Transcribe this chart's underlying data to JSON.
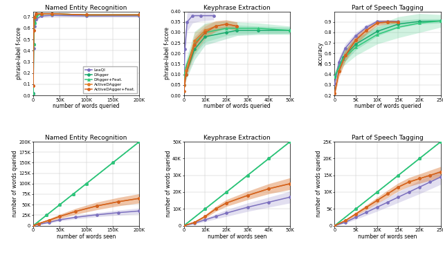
{
  "methods": [
    "LeaQI",
    "DAgger",
    "DAgger+Feat.",
    "ActiveDAgger",
    "ActiveDAgger+Feat."
  ],
  "colors": [
    "#7b6fbe",
    "#1aaa6e",
    "#2ec87a",
    "#e07b2a",
    "#d4621e"
  ],
  "markers": [
    "o",
    "o",
    "^",
    "o",
    "o"
  ],
  "NER_top": {
    "title": "Named Entity Recognition",
    "xlabel": "number of words queried",
    "ylabel": "phrase-label f-score",
    "xlim": [
      0,
      200000
    ],
    "ylim": [
      0.0,
      0.75
    ],
    "xticks": [
      0,
      50000,
      100000,
      150000,
      200000
    ],
    "xtick_labels": [
      "0",
      "50K",
      "100K",
      "150K",
      "200K"
    ],
    "yticks": [
      0.0,
      0.1,
      0.2,
      0.3,
      0.4,
      0.5,
      0.6,
      0.7
    ],
    "data": {
      "LeaQI": {
        "x": [
          0,
          800,
          2000,
          5000,
          15000,
          35000,
          100000,
          200000
        ],
        "y": [
          0.02,
          0.42,
          0.62,
          0.68,
          0.71,
          0.715,
          0.71,
          0.71
        ],
        "std": [
          0.005,
          0.025,
          0.025,
          0.015,
          0.01,
          0.008,
          0.007,
          0.007
        ]
      },
      "DAgger": {
        "x": [
          0,
          800,
          2000,
          5000,
          15000,
          35000,
          100000,
          200000
        ],
        "y": [
          0.02,
          0.46,
          0.65,
          0.71,
          0.73,
          0.73,
          0.72,
          0.72
        ],
        "std": [
          0.005,
          0.02,
          0.02,
          0.012,
          0.008,
          0.006,
          0.005,
          0.005
        ]
      },
      "DAgger+Feat.": {
        "x": [
          0,
          800,
          2000,
          5000,
          15000,
          35000,
          100000,
          200000
        ],
        "y": [
          0.02,
          0.46,
          0.65,
          0.71,
          0.73,
          0.73,
          0.72,
          0.72
        ],
        "std": [
          0.005,
          0.02,
          0.02,
          0.012,
          0.008,
          0.006,
          0.005,
          0.005
        ]
      },
      "ActiveDAgger": {
        "x": [
          0,
          800,
          2000,
          5000,
          15000,
          35000,
          100000,
          200000
        ],
        "y": [
          0.09,
          0.58,
          0.7,
          0.73,
          0.73,
          0.73,
          0.72,
          0.72
        ],
        "std": [
          0.01,
          0.03,
          0.02,
          0.012,
          0.008,
          0.006,
          0.005,
          0.005
        ]
      },
      "ActiveDAgger+Feat.": {
        "x": [
          0,
          800,
          2000,
          5000,
          15000,
          35000,
          100000,
          200000
        ],
        "y": [
          0.09,
          0.58,
          0.7,
          0.73,
          0.73,
          0.73,
          0.72,
          0.72
        ],
        "std": [
          0.01,
          0.03,
          0.02,
          0.012,
          0.008,
          0.006,
          0.005,
          0.005
        ]
      }
    }
  },
  "KP_top": {
    "title": "Keyphrase Extraction",
    "xlabel": "number of words queried",
    "ylabel": "phrase-label f-score",
    "xlim": [
      0,
      50000
    ],
    "ylim": [
      0.0,
      0.4
    ],
    "xticks": [
      0,
      10000,
      20000,
      30000,
      40000,
      50000
    ],
    "xtick_labels": [
      "0",
      "10K",
      "20K",
      "30K",
      "40K",
      "50K"
    ],
    "yticks": [
      0.0,
      0.05,
      0.1,
      0.15,
      0.2,
      0.25,
      0.3,
      0.35,
      0.4
    ],
    "data": {
      "LeaQI": {
        "x": [
          0,
          400,
          1500,
          4000,
          8000,
          14000
        ],
        "y": [
          0.05,
          0.22,
          0.35,
          0.38,
          0.38,
          0.38
        ],
        "std": [
          0.015,
          0.04,
          0.045,
          0.035,
          0.025,
          0.02
        ]
      },
      "DAgger": {
        "x": [
          0,
          1000,
          5000,
          10000,
          20000,
          25000,
          35000,
          50000
        ],
        "y": [
          0.05,
          0.1,
          0.22,
          0.28,
          0.3,
          0.31,
          0.31,
          0.31
        ],
        "std": [
          0.01,
          0.025,
          0.05,
          0.04,
          0.03,
          0.025,
          0.02,
          0.015
        ]
      },
      "DAgger+Feat.": {
        "x": [
          0,
          1000,
          5000,
          10000,
          20000,
          25000,
          35000,
          50000
        ],
        "y": [
          0.09,
          0.14,
          0.25,
          0.3,
          0.32,
          0.32,
          0.32,
          0.31
        ],
        "std": [
          0.02,
          0.03,
          0.055,
          0.045,
          0.035,
          0.03,
          0.025,
          0.02
        ]
      },
      "ActiveDAgger": {
        "x": [
          0,
          1000,
          5000,
          10000,
          15000,
          20000,
          25000
        ],
        "y": [
          0.05,
          0.12,
          0.26,
          0.31,
          0.33,
          0.34,
          0.33
        ],
        "std": [
          0.01,
          0.02,
          0.04,
          0.03,
          0.025,
          0.02,
          0.02
        ]
      },
      "ActiveDAgger+Feat.": {
        "x": [
          0,
          1000,
          5000,
          10000,
          15000,
          20000,
          25000
        ],
        "y": [
          0.02,
          0.1,
          0.24,
          0.3,
          0.33,
          0.34,
          0.33
        ],
        "std": [
          0.01,
          0.02,
          0.04,
          0.03,
          0.025,
          0.02,
          0.02
        ]
      }
    }
  },
  "POS_top": {
    "title": "Part of Speech Tagging",
    "xlabel": "number of words queried",
    "ylabel": "accuracy",
    "xlim": [
      0,
      25000
    ],
    "ylim": [
      0.2,
      1.0
    ],
    "xticks": [
      0,
      5000,
      10000,
      15000,
      20000,
      25000
    ],
    "xtick_labels": [
      "0",
      "5K",
      "10K",
      "15K",
      "20K",
      "25K"
    ],
    "yticks": [
      0.2,
      0.3,
      0.4,
      0.5,
      0.6,
      0.7,
      0.8,
      0.9
    ],
    "data": {
      "LeaQI": {
        "x": [
          0,
          1000,
          2500,
          5000,
          7500,
          10000,
          12500,
          15000
        ],
        "y": [
          0.31,
          0.52,
          0.65,
          0.77,
          0.85,
          0.905,
          0.905,
          0.905
        ],
        "std": [
          0.02,
          0.04,
          0.04,
          0.03,
          0.025,
          0.015,
          0.012,
          0.01
        ]
      },
      "DAgger": {
        "x": [
          0,
          2000,
          5000,
          10000,
          15000,
          20000,
          25000
        ],
        "y": [
          0.38,
          0.56,
          0.69,
          0.81,
          0.88,
          0.905,
          0.91
        ],
        "std": [
          0.04,
          0.055,
          0.055,
          0.045,
          0.035,
          0.025,
          0.02
        ]
      },
      "DAgger+Feat.": {
        "x": [
          0,
          2000,
          5000,
          10000,
          15000,
          20000,
          25000
        ],
        "y": [
          0.38,
          0.55,
          0.66,
          0.78,
          0.85,
          0.89,
          0.91
        ],
        "std": [
          0.04,
          0.07,
          0.08,
          0.09,
          0.1,
          0.09,
          0.06
        ]
      },
      "ActiveDAgger": {
        "x": [
          0,
          1000,
          2500,
          5000,
          7500,
          10000,
          12500,
          15000
        ],
        "y": [
          0.22,
          0.43,
          0.58,
          0.73,
          0.82,
          0.89,
          0.9,
          0.9
        ],
        "std": [
          0.03,
          0.055,
          0.055,
          0.045,
          0.035,
          0.025,
          0.02,
          0.015
        ]
      },
      "ActiveDAgger+Feat.": {
        "x": [
          0,
          1000,
          2500,
          5000,
          7500,
          10000,
          12500,
          15000
        ],
        "y": [
          0.22,
          0.43,
          0.58,
          0.73,
          0.82,
          0.89,
          0.9,
          0.9
        ],
        "std": [
          0.03,
          0.055,
          0.055,
          0.045,
          0.035,
          0.025,
          0.02,
          0.015
        ]
      }
    }
  },
  "NER_bot": {
    "title": "Named Entity Recognition",
    "xlabel": "number of words seen",
    "ylabel": "number of words queried",
    "xlim": [
      0,
      200000
    ],
    "ylim": [
      0,
      200000
    ],
    "xticks": [
      0,
      50000,
      100000,
      150000,
      200000
    ],
    "xtick_labels": [
      "0",
      "50K",
      "100K",
      "150K",
      "200K"
    ],
    "yticks": [
      0,
      25000,
      50000,
      75000,
      100000,
      125000,
      150000,
      175000,
      200000
    ],
    "ytick_labels": [
      "0",
      "25K",
      "50K",
      "75K",
      "100K",
      "125K",
      "150K",
      "175K",
      "200K"
    ],
    "data": {
      "LeaQI": {
        "x": [
          0,
          10000,
          30000,
          50000,
          80000,
          120000,
          160000,
          200000
        ],
        "y": [
          0,
          3000,
          8000,
          14000,
          20000,
          26000,
          31000,
          35000
        ],
        "std": [
          0,
          1000,
          2000,
          3000,
          4000,
          5000,
          6000,
          7000
        ]
      },
      "DAgger": {
        "x": [
          0,
          25000,
          50000,
          75000,
          100000,
          150000,
          200000
        ],
        "y": [
          0,
          25000,
          50000,
          75000,
          100000,
          150000,
          200000
        ],
        "std": [
          0,
          0,
          0,
          0,
          0,
          0,
          0
        ]
      },
      "DAgger+Feat.": {
        "x": [
          0,
          25000,
          50000,
          75000,
          100000,
          150000,
          200000
        ],
        "y": [
          0,
          25000,
          50000,
          75000,
          100000,
          150000,
          200000
        ],
        "std": [
          0,
          0,
          0,
          0,
          0,
          0,
          0
        ]
      },
      "ActiveDAgger": {
        "x": [
          0,
          10000,
          30000,
          50000,
          80000,
          120000,
          160000,
          200000
        ],
        "y": [
          0,
          5000,
          13000,
          22000,
          34000,
          47000,
          57000,
          65000
        ],
        "std": [
          0,
          1500,
          3500,
          5000,
          7000,
          9000,
          10000,
          11000
        ]
      },
      "ActiveDAgger+Feat.": {
        "x": [
          0,
          10000,
          30000,
          50000,
          80000,
          120000,
          160000,
          200000
        ],
        "y": [
          0,
          5000,
          13000,
          22000,
          34000,
          47000,
          57000,
          65000
        ],
        "std": [
          0,
          1500,
          3500,
          5000,
          7000,
          9000,
          10000,
          11000
        ]
      }
    }
  },
  "KP_bot": {
    "title": "Keyphrase Extraction",
    "xlabel": "number of words seen",
    "ylabel": "number of words queried",
    "xlim": [
      0,
      50000
    ],
    "ylim": [
      0,
      50000
    ],
    "xticks": [
      0,
      10000,
      20000,
      30000,
      40000,
      50000
    ],
    "xtick_labels": [
      "0",
      "10K",
      "20K",
      "30K",
      "40K",
      "50K"
    ],
    "yticks": [
      0,
      10000,
      20000,
      30000,
      40000,
      50000
    ],
    "ytick_labels": [
      "0",
      "10K",
      "20K",
      "30K",
      "40K",
      "50K"
    ],
    "data": {
      "LeaQI": {
        "x": [
          0,
          5000,
          10000,
          15000,
          20000,
          30000,
          40000,
          50000
        ],
        "y": [
          0,
          1500,
          3500,
          5500,
          7500,
          11000,
          14000,
          17000
        ],
        "std": [
          0,
          500,
          1000,
          1500,
          2000,
          2500,
          3000,
          3500
        ]
      },
      "DAgger": {
        "x": [
          0,
          10000,
          20000,
          30000,
          40000,
          50000
        ],
        "y": [
          0,
          10000,
          20000,
          30000,
          40000,
          50000
        ],
        "std": [
          0,
          0,
          0,
          0,
          0,
          0
        ]
      },
      "DAgger+Feat.": {
        "x": [
          0,
          10000,
          20000,
          30000,
          40000,
          50000
        ],
        "y": [
          0,
          10000,
          20000,
          30000,
          40000,
          50000
        ],
        "std": [
          0,
          0,
          0,
          0,
          0,
          0
        ]
      },
      "ActiveDAgger": {
        "x": [
          0,
          5000,
          10000,
          15000,
          20000,
          30000,
          40000,
          50000
        ],
        "y": [
          0,
          2000,
          5500,
          10000,
          13500,
          18000,
          22000,
          25000
        ],
        "std": [
          0,
          500,
          1000,
          1500,
          2000,
          2500,
          3000,
          3500
        ]
      },
      "ActiveDAgger+Feat.": {
        "x": [
          0,
          5000,
          10000,
          15000,
          20000,
          30000,
          40000,
          50000
        ],
        "y": [
          0,
          2000,
          5500,
          10000,
          13500,
          18000,
          22000,
          25000
        ],
        "std": [
          0,
          500,
          1000,
          1500,
          2000,
          2500,
          3000,
          3500
        ]
      }
    }
  },
  "POS_bot": {
    "title": "Part of Speech Tagging",
    "xlabel": "number of words seen",
    "ylabel": "number of words queried",
    "xlim": [
      0,
      25000
    ],
    "ylim": [
      0,
      25000
    ],
    "xticks": [
      0,
      5000,
      10000,
      15000,
      20000,
      25000
    ],
    "xtick_labels": [
      "0",
      "5K",
      "10K",
      "15K",
      "20K",
      "25K"
    ],
    "yticks": [
      0,
      5000,
      10000,
      15000,
      20000,
      25000
    ],
    "ytick_labels": [
      "0",
      "5K",
      "10K",
      "15K",
      "20K",
      "25K"
    ],
    "data": {
      "LeaQI": {
        "x": [
          0,
          2500,
          5000,
          7500,
          10000,
          12500,
          15000,
          17500,
          20000,
          22500,
          25000
        ],
        "y": [
          0,
          1000,
          2500,
          4000,
          5500,
          7000,
          8500,
          10000,
          11500,
          13000,
          14500
        ],
        "std": [
          0,
          300,
          600,
          900,
          1200,
          1400,
          1600,
          1800,
          2000,
          2100,
          2200
        ]
      },
      "DAgger": {
        "x": [
          0,
          5000,
          10000,
          15000,
          20000,
          25000
        ],
        "y": [
          0,
          5000,
          10000,
          15000,
          20000,
          25000
        ],
        "std": [
          0,
          0,
          0,
          0,
          0,
          0
        ]
      },
      "DAgger+Feat.": {
        "x": [
          0,
          5000,
          10000,
          15000,
          20000,
          25000
        ],
        "y": [
          0,
          5000,
          10000,
          15000,
          20000,
          25000
        ],
        "std": [
          0,
          0,
          0,
          0,
          0,
          0
        ]
      },
      "ActiveDAgger": {
        "x": [
          0,
          2500,
          5000,
          7500,
          10000,
          12500,
          15000,
          17500,
          20000,
          22500,
          25000
        ],
        "y": [
          0,
          1500,
          3500,
          5500,
          7500,
          9500,
          11500,
          13000,
          14000,
          15000,
          16000
        ],
        "std": [
          0,
          300,
          500,
          700,
          900,
          1100,
          1200,
          1300,
          1400,
          1500,
          1600
        ]
      },
      "ActiveDAgger+Feat.": {
        "x": [
          0,
          2500,
          5000,
          7500,
          10000,
          12500,
          15000,
          17500,
          20000,
          22500,
          25000
        ],
        "y": [
          0,
          1500,
          3500,
          5500,
          7500,
          9500,
          11500,
          13000,
          14000,
          15000,
          16000
        ],
        "std": [
          0,
          300,
          500,
          700,
          900,
          1100,
          1200,
          1300,
          1400,
          1500,
          1600
        ]
      }
    }
  }
}
